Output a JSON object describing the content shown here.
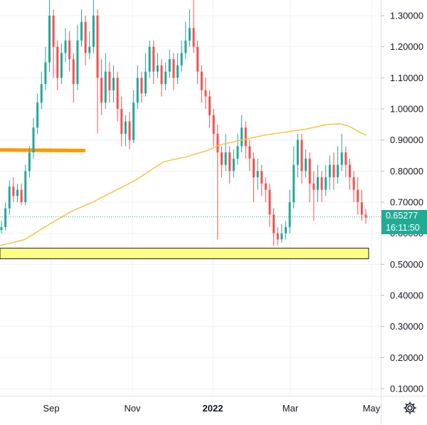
{
  "chart_data": {
    "type": "candlestick",
    "title": "",
    "xlabel": "",
    "ylabel": "",
    "ylim": [
      0.08,
      1.34
    ],
    "y_ticks": [
      "0.10000",
      "0.20000",
      "0.30000",
      "0.40000",
      "0.50000",
      "0.60000",
      "0.70000",
      "0.80000",
      "0.90000",
      "1.00000",
      "1.10000",
      "1.20000",
      "1.30000"
    ],
    "x_ticks": [
      {
        "label": "Sep",
        "bold": false
      },
      {
        "label": "Nov",
        "bold": false
      },
      {
        "label": "2022",
        "bold": true
      },
      {
        "label": "Mar",
        "bold": false
      },
      {
        "label": "May",
        "bold": false
      }
    ],
    "grid": true,
    "current_price": "0.65277",
    "countdown": "16:11:50",
    "colors": {
      "up": "#26a69a",
      "down": "#ef5350",
      "moving_average": "#f6c343",
      "support_zone": "#ffff88",
      "trend_line": "#ff9800",
      "badge": "#22ab94"
    },
    "moving_average_points": [
      [
        0,
        0.56
      ],
      [
        35,
        0.58
      ],
      [
        70,
        0.63
      ],
      [
        100,
        0.67
      ],
      [
        130,
        0.7
      ],
      [
        160,
        0.735
      ],
      [
        190,
        0.77
      ],
      [
        210,
        0.8
      ],
      [
        230,
        0.83
      ],
      [
        260,
        0.845
      ],
      [
        290,
        0.865
      ],
      [
        310,
        0.885
      ],
      [
        340,
        0.9
      ],
      [
        370,
        0.915
      ],
      [
        400,
        0.925
      ],
      [
        430,
        0.935
      ],
      [
        460,
        0.95
      ],
      [
        478,
        0.952
      ],
      [
        490,
        0.945
      ],
      [
        505,
        0.925
      ],
      [
        515,
        0.915
      ]
    ],
    "trend_line": {
      "x": [
        0,
        120
      ],
      "y": [
        0.868,
        0.866
      ]
    },
    "support_zone": {
      "y_from": 0.518,
      "y_to": 0.552
    },
    "candles": [
      [
        0.61,
        0.62,
        0.64,
        0.6
      ],
      [
        0.62,
        0.68,
        0.7,
        0.61
      ],
      [
        0.68,
        0.75,
        0.77,
        0.66
      ],
      [
        0.75,
        0.72,
        0.78,
        0.7
      ],
      [
        0.72,
        0.74,
        0.76,
        0.7
      ],
      [
        0.74,
        0.7,
        0.76,
        0.69
      ],
      [
        0.7,
        0.8,
        0.82,
        0.69
      ],
      [
        0.8,
        0.86,
        0.88,
        0.78
      ],
      [
        0.86,
        0.94,
        0.97,
        0.84
      ],
      [
        0.94,
        1.02,
        1.05,
        0.92
      ],
      [
        1.02,
        1.08,
        1.12,
        1.0
      ],
      [
        1.08,
        1.15,
        1.2,
        1.06
      ],
      [
        1.15,
        1.3,
        1.35,
        1.12
      ],
      [
        1.3,
        1.2,
        1.32,
        1.1
      ],
      [
        1.2,
        1.1,
        1.22,
        1.06
      ],
      [
        1.1,
        1.18,
        1.21,
        1.08
      ],
      [
        1.18,
        1.22,
        1.26,
        1.15
      ],
      [
        1.22,
        1.16,
        1.25,
        1.12
      ],
      [
        1.16,
        1.08,
        1.18,
        1.02
      ],
      [
        1.08,
        1.22,
        1.27,
        1.06
      ],
      [
        1.22,
        1.28,
        1.32,
        1.2
      ],
      [
        1.28,
        1.18,
        1.3,
        1.14
      ],
      [
        1.18,
        1.2,
        1.25,
        1.16
      ],
      [
        1.2,
        1.3,
        1.35,
        1.18
      ],
      [
        1.3,
        1.1,
        1.32,
        0.92
      ],
      [
        1.1,
        1.02,
        1.16,
        0.98
      ],
      [
        1.02,
        1.12,
        1.18,
        1.0
      ],
      [
        1.12,
        1.06,
        1.15,
        1.02
      ],
      [
        1.06,
        1.1,
        1.14,
        1.02
      ],
      [
        1.1,
        1.0,
        1.12,
        0.96
      ],
      [
        1.0,
        0.92,
        1.04,
        0.88
      ],
      [
        0.92,
        0.96,
        0.98,
        0.88
      ],
      [
        0.96,
        0.9,
        0.99,
        0.87
      ],
      [
        0.9,
        1.02,
        1.06,
        0.89
      ],
      [
        1.02,
        1.1,
        1.14,
        1.0
      ],
      [
        1.1,
        1.05,
        1.12,
        1.02
      ],
      [
        1.05,
        1.12,
        1.18,
        1.04
      ],
      [
        1.12,
        1.2,
        1.22,
        1.1
      ],
      [
        1.2,
        1.12,
        1.22,
        1.08
      ],
      [
        1.12,
        1.14,
        1.18,
        1.1
      ],
      [
        1.14,
        1.08,
        1.16,
        1.04
      ],
      [
        1.08,
        1.12,
        1.15,
        1.06
      ],
      [
        1.12,
        1.16,
        1.19,
        1.1
      ],
      [
        1.16,
        1.1,
        1.18,
        1.06
      ],
      [
        1.1,
        1.14,
        1.18,
        1.08
      ],
      [
        1.14,
        1.18,
        1.22,
        1.12
      ],
      [
        1.18,
        1.22,
        1.28,
        1.16
      ],
      [
        1.22,
        1.26,
        1.32,
        1.2
      ],
      [
        1.26,
        1.2,
        1.35,
        1.18
      ],
      [
        1.2,
        1.12,
        1.22,
        1.08
      ],
      [
        1.12,
        1.06,
        1.14,
        1.02
      ],
      [
        1.06,
        1.04,
        1.1,
        1.0
      ],
      [
        1.04,
        0.98,
        1.06,
        0.94
      ],
      [
        0.98,
        0.92,
        1.0,
        0.88
      ],
      [
        0.92,
        0.86,
        0.95,
        0.58
      ],
      [
        0.86,
        0.82,
        0.88,
        0.78
      ],
      [
        0.82,
        0.86,
        0.92,
        0.8
      ],
      [
        0.86,
        0.8,
        0.88,
        0.76
      ],
      [
        0.8,
        0.84,
        0.87,
        0.78
      ],
      [
        0.84,
        0.88,
        0.92,
        0.82
      ],
      [
        0.88,
        0.94,
        0.98,
        0.86
      ],
      [
        0.94,
        0.88,
        0.96,
        0.84
      ],
      [
        0.88,
        0.84,
        0.9,
        0.8
      ],
      [
        0.84,
        0.78,
        0.86,
        0.7
      ],
      [
        0.78,
        0.8,
        0.84,
        0.74
      ],
      [
        0.8,
        0.76,
        0.82,
        0.72
      ],
      [
        0.76,
        0.74,
        0.78,
        0.7
      ],
      [
        0.74,
        0.66,
        0.76,
        0.62
      ],
      [
        0.66,
        0.6,
        0.68,
        0.56
      ],
      [
        0.6,
        0.58,
        0.62,
        0.56
      ],
      [
        0.58,
        0.6,
        0.63,
        0.57
      ],
      [
        0.6,
        0.62,
        0.64,
        0.58
      ],
      [
        0.62,
        0.7,
        0.74,
        0.6
      ],
      [
        0.7,
        0.82,
        0.88,
        0.68
      ],
      [
        0.82,
        0.9,
        0.92,
        0.78
      ],
      [
        0.9,
        0.8,
        0.92,
        0.76
      ],
      [
        0.8,
        0.84,
        0.87,
        0.78
      ],
      [
        0.84,
        0.76,
        0.86,
        0.7
      ],
      [
        0.76,
        0.74,
        0.8,
        0.64
      ],
      [
        0.74,
        0.78,
        0.82,
        0.7
      ],
      [
        0.78,
        0.74,
        0.8,
        0.7
      ],
      [
        0.74,
        0.78,
        0.82,
        0.72
      ],
      [
        0.78,
        0.82,
        0.85,
        0.74
      ],
      [
        0.82,
        0.78,
        0.86,
        0.74
      ],
      [
        0.78,
        0.82,
        0.88,
        0.76
      ],
      [
        0.82,
        0.86,
        0.92,
        0.8
      ],
      [
        0.86,
        0.82,
        0.88,
        0.78
      ],
      [
        0.82,
        0.78,
        0.84,
        0.74
      ],
      [
        0.78,
        0.74,
        0.8,
        0.7
      ],
      [
        0.74,
        0.7,
        0.78,
        0.66
      ],
      [
        0.7,
        0.66,
        0.74,
        0.64
      ],
      [
        0.66,
        0.65,
        0.68,
        0.63
      ]
    ]
  },
  "settings": {
    "icon": "gear-icon"
  }
}
